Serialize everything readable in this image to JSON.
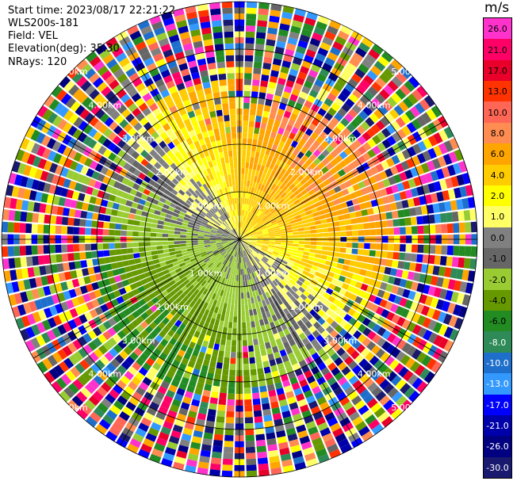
{
  "header": {
    "start_time": "Start time: 2023/08/17 22:21:22",
    "instrument": "WLS200s-181",
    "field": "Field: VEL",
    "elevation": "Elevation(deg): 35.30",
    "nrays": "NRays: 120"
  },
  "chart_data": {
    "type": "heatmap",
    "subtype": "PPI radial velocity",
    "field": "VEL",
    "n_rays": 120,
    "range_rings_km": [
      1.0,
      2.0,
      3.0,
      4.0,
      5.0
    ],
    "range_ring_labels": [
      "1.00km",
      "2.00km",
      "3.00km",
      "4.00km",
      "5.00km"
    ],
    "radial_lines_deg": [
      0,
      30,
      60,
      90,
      120,
      150,
      180,
      210,
      240,
      270,
      300,
      330
    ],
    "max_range_km": 5.0,
    "velocity_pattern": {
      "approaching_sector_deg": 225,
      "receding_sector_deg": 45,
      "description": "yellow/orange positive velocities toward north-east, green/blue negative toward south-west, noisy outer gates"
    },
    "colorbar": {
      "title": "m/s",
      "ticks": [
        "26.0",
        "21.0",
        "17.0",
        "13.0",
        "10.0",
        "8.0",
        "6.0",
        "4.0",
        "2.0",
        "1.0",
        "0.0",
        "-1.0",
        "-2.0",
        "-4.0",
        "-6.0",
        "-8.0",
        "-10.0",
        "-13.0",
        "-17.0",
        "-21.0",
        "-26.0",
        "-30.0"
      ],
      "colors": [
        "#ff33cc",
        "#ff0066",
        "#e8002a",
        "#ff3300",
        "#ff6655",
        "#ff8c50",
        "#ffa500",
        "#ffcc00",
        "#ffff00",
        "#ffff66",
        "#808080",
        "#666666",
        "#99cc33",
        "#669900",
        "#228b22",
        "#2e8b57",
        "#1e6fcc",
        "#3399ff",
        "#0000ff",
        "#0000aa",
        "#000080",
        "#191970"
      ]
    }
  }
}
